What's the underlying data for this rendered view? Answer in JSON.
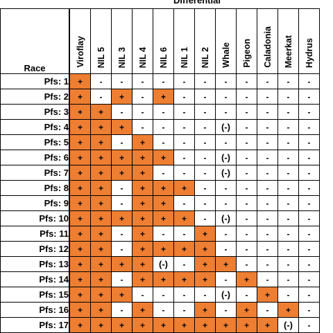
{
  "title": "Differential",
  "race_header": "Race",
  "differentials": [
    "Viroflay",
    "NIL 5",
    "NIL 3",
    "NIL 4",
    "NIL 6",
    "NIL 1",
    "NIL 2",
    "Whale",
    "Pigeon",
    "Caladonia",
    "Meerkat",
    "Hydrus"
  ],
  "colors": {
    "positive_fill": "#ee7e32",
    "border": "#000000"
  },
  "rows": [
    {
      "race": "Pfs: 1",
      "cells": [
        "+",
        "-",
        "-",
        "-",
        "-",
        "-",
        "-",
        "-",
        "-",
        "-",
        "-",
        "-"
      ]
    },
    {
      "race": "Pfs: 2",
      "cells": [
        "+",
        "-",
        "+",
        "-",
        "+",
        "-",
        "-",
        "-",
        "-",
        "-",
        "-",
        "-"
      ]
    },
    {
      "race": "Pfs: 3",
      "cells": [
        "+",
        "+",
        "-",
        "-",
        "-",
        "-",
        "-",
        "-",
        "-",
        "-",
        "-",
        "-"
      ]
    },
    {
      "race": "Pfs: 4",
      "cells": [
        "+",
        "+",
        "+",
        "-",
        "-",
        "-",
        "-",
        "(-)",
        "-",
        "-",
        "-",
        "-"
      ]
    },
    {
      "race": "Pfs: 5",
      "cells": [
        "+",
        "+",
        "-",
        "+",
        "-",
        "-",
        "-",
        "-",
        "-",
        "-",
        "-",
        "-"
      ]
    },
    {
      "race": "Pfs: 6",
      "cells": [
        "+",
        "+",
        "+",
        "+",
        "+",
        "-",
        "-",
        "(-)",
        "-",
        "-",
        "-",
        "-"
      ]
    },
    {
      "race": "Pfs: 7",
      "cells": [
        "+",
        "+",
        "+",
        "+",
        "-",
        "-",
        "-",
        "(-)",
        "-",
        "-",
        "-",
        "-"
      ]
    },
    {
      "race": "Pfs: 8",
      "cells": [
        "+",
        "+",
        "-",
        "+",
        "+",
        "+",
        "-",
        "-",
        "-",
        "-",
        "-",
        "-"
      ]
    },
    {
      "race": "Pfs: 9",
      "cells": [
        "+",
        "+",
        "-",
        "+",
        "+",
        "-",
        "-",
        "-",
        "-",
        "-",
        "-",
        "-"
      ]
    },
    {
      "race": "Pfs: 10",
      "cells": [
        "+",
        "+",
        "+",
        "+",
        "+",
        "+",
        "-",
        "(-)",
        "-",
        "-",
        "-",
        "-"
      ]
    },
    {
      "race": "Pfs: 11",
      "cells": [
        "+",
        "+",
        "-",
        "+",
        "-",
        "-",
        "+",
        "-",
        "-",
        "-",
        "-",
        "-"
      ]
    },
    {
      "race": "Pfs: 12",
      "cells": [
        "+",
        "+",
        "-",
        "+",
        "+",
        "+",
        "+",
        "-",
        "-",
        "-",
        "-",
        "-"
      ]
    },
    {
      "race": "Pfs: 13",
      "cells": [
        "+",
        "+",
        "+",
        "+",
        "(-)",
        "-",
        "+",
        "+",
        "-",
        "-",
        "-",
        "-"
      ]
    },
    {
      "race": "Pfs: 14",
      "cells": [
        "+",
        "+",
        "-",
        "+",
        "+",
        "+",
        "+",
        "-",
        "+",
        "-",
        "-",
        "-"
      ]
    },
    {
      "race": "Pfs: 15",
      "cells": [
        "+",
        "+",
        "+",
        "-",
        "-",
        "-",
        "-",
        "(-)",
        "-",
        "+",
        "-",
        "-"
      ]
    },
    {
      "race": "Pfs: 16",
      "cells": [
        "+",
        "+",
        "-",
        "+",
        "-",
        "-",
        "+",
        "-",
        "+",
        "-",
        "+",
        "-"
      ]
    },
    {
      "race": "Pfs: 17",
      "cells": [
        "+",
        "+",
        "+",
        "+",
        "+",
        "+",
        "+",
        "+",
        "+",
        "+",
        "(-)",
        "-"
      ]
    }
  ]
}
